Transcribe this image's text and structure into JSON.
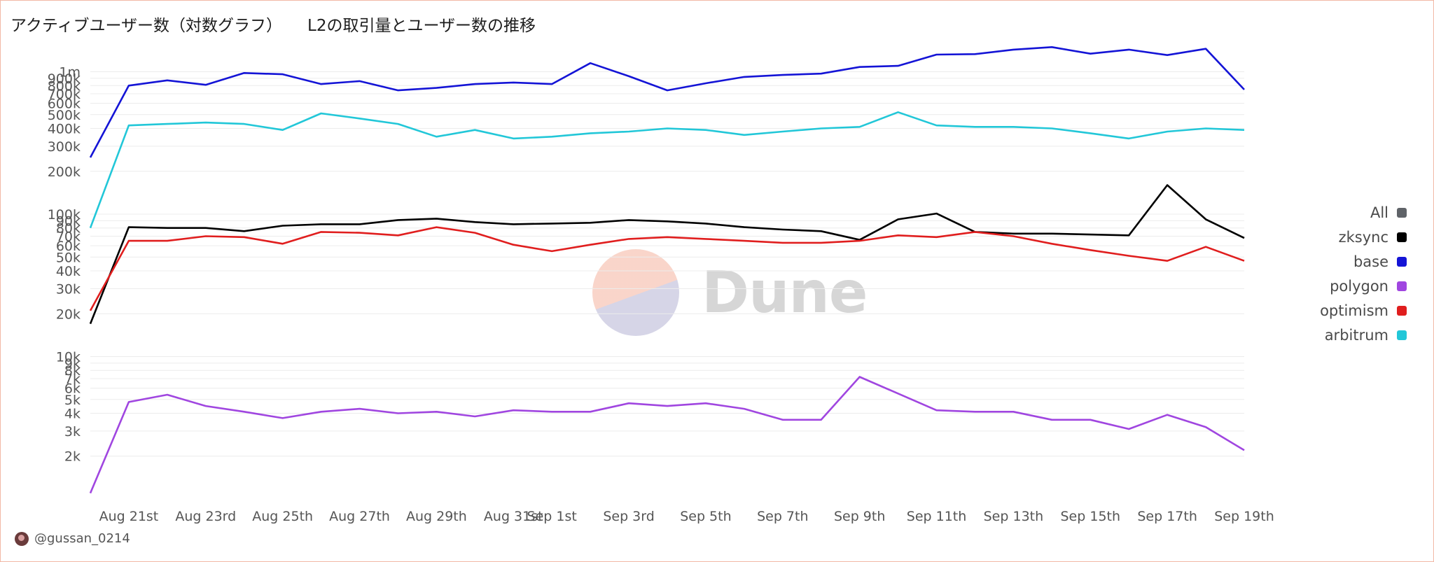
{
  "header": {
    "title": "アクティブユーザー数（対数グラフ）",
    "subtitle": "L2の取引量とユーザー数の推移"
  },
  "legend": [
    {
      "label": "All",
      "color": "#5f6368"
    },
    {
      "label": "zksync",
      "color": "#000000"
    },
    {
      "label": "base",
      "color": "#1414d6"
    },
    {
      "label": "polygon",
      "color": "#a046e0"
    },
    {
      "label": "optimism",
      "color": "#e01e1e"
    },
    {
      "label": "arbitrum",
      "color": "#22c7d8"
    }
  ],
  "watermark": {
    "text": "Dune"
  },
  "footer": {
    "author": "@gussan_0214"
  },
  "chart_data": {
    "type": "line",
    "x_start": "2023-08-20",
    "x": [
      "2023-08-20",
      "2023-08-21",
      "2023-08-22",
      "2023-08-23",
      "2023-08-24",
      "2023-08-25",
      "2023-08-26",
      "2023-08-27",
      "2023-08-28",
      "2023-08-29",
      "2023-08-30",
      "2023-08-31",
      "2023-09-01",
      "2023-09-02",
      "2023-09-03",
      "2023-09-04",
      "2023-09-05",
      "2023-09-06",
      "2023-09-07",
      "2023-09-08",
      "2023-09-09",
      "2023-09-10",
      "2023-09-11",
      "2023-09-12",
      "2023-09-13",
      "2023-09-14",
      "2023-09-15",
      "2023-09-16",
      "2023-09-17",
      "2023-09-18",
      "2023-09-19"
    ],
    "x_ticks": [
      "Aug 21st",
      "Aug 23rd",
      "Aug 25th",
      "Aug 27th",
      "Aug 29th",
      "Aug 31st",
      "Sep 1st",
      "Sep 3rd",
      "Sep 5th",
      "Sep 7th",
      "Sep 9th",
      "Sep 11th",
      "Sep 13th",
      "Sep 15th",
      "Sep 17th",
      "Sep 19th"
    ],
    "x_tick_dates": [
      "2023-08-21",
      "2023-08-23",
      "2023-08-25",
      "2023-08-27",
      "2023-08-29",
      "2023-08-31",
      "2023-09-01",
      "2023-09-03",
      "2023-09-05",
      "2023-09-07",
      "2023-09-09",
      "2023-09-11",
      "2023-09-13",
      "2023-09-15",
      "2023-09-17",
      "2023-09-19"
    ],
    "y_scale": "log",
    "y_ticks": [
      {
        "v": 2000,
        "l": "2k"
      },
      {
        "v": 3000,
        "l": "3k"
      },
      {
        "v": 4000,
        "l": "4k"
      },
      {
        "v": 5000,
        "l": "5k"
      },
      {
        "v": 6000,
        "l": "6k"
      },
      {
        "v": 7000,
        "l": "7k"
      },
      {
        "v": 8000,
        "l": "8k"
      },
      {
        "v": 9000,
        "l": "9k"
      },
      {
        "v": 10000,
        "l": "10k"
      },
      {
        "v": 20000,
        "l": "20k"
      },
      {
        "v": 30000,
        "l": "30k"
      },
      {
        "v": 40000,
        "l": "40k"
      },
      {
        "v": 50000,
        "l": "50k"
      },
      {
        "v": 60000,
        "l": "60k"
      },
      {
        "v": 70000,
        "l": "70k"
      },
      {
        "v": 80000,
        "l": "80k"
      },
      {
        "v": 90000,
        "l": "90k"
      },
      {
        "v": 100000,
        "l": "100k"
      },
      {
        "v": 200000,
        "l": "200k"
      },
      {
        "v": 300000,
        "l": "300k"
      },
      {
        "v": 400000,
        "l": "400k"
      },
      {
        "v": 500000,
        "l": "500k"
      },
      {
        "v": 600000,
        "l": "600k"
      },
      {
        "v": 700000,
        "l": "700k"
      },
      {
        "v": 800000,
        "l": "800k"
      },
      {
        "v": 900000,
        "l": "900k"
      },
      {
        "v": 1000000,
        "l": "1m"
      }
    ],
    "ylim": [
      1000,
      1600000
    ],
    "grid": true,
    "legend_position": "right",
    "series": [
      {
        "name": "base",
        "color": "#1414d6",
        "values": [
          250000,
          800000,
          870000,
          810000,
          980000,
          960000,
          820000,
          860000,
          740000,
          770000,
          820000,
          840000,
          820000,
          1150000,
          930000,
          740000,
          830000,
          920000,
          950000,
          970000,
          1080000,
          1100000,
          1320000,
          1330000,
          1430000,
          1490000,
          1340000,
          1430000,
          1310000,
          1450000,
          750000
        ]
      },
      {
        "name": "arbitrum",
        "color": "#22c7d8",
        "values": [
          80000,
          420000,
          430000,
          440000,
          430000,
          390000,
          510000,
          470000,
          430000,
          350000,
          390000,
          340000,
          350000,
          370000,
          380000,
          400000,
          390000,
          360000,
          380000,
          400000,
          410000,
          520000,
          420000,
          410000,
          410000,
          400000,
          370000,
          340000,
          380000,
          400000,
          390000
        ]
      },
      {
        "name": "zksync",
        "color": "#000000",
        "values": [
          17000,
          81000,
          80000,
          80000,
          76000,
          83000,
          85000,
          85000,
          91000,
          93000,
          88000,
          85000,
          86000,
          87000,
          91000,
          89000,
          86000,
          81000,
          78000,
          76000,
          66000,
          92000,
          101000,
          75000,
          73000,
          73000,
          72000,
          71000,
          160000,
          92000,
          68000
        ]
      },
      {
        "name": "optimism",
        "color": "#e01e1e",
        "values": [
          21000,
          65000,
          65000,
          70000,
          69000,
          62000,
          75000,
          74000,
          71000,
          81000,
          74000,
          61000,
          55000,
          61000,
          67000,
          69000,
          67000,
          65000,
          63000,
          63000,
          65000,
          71000,
          69000,
          75000,
          70000,
          62000,
          56000,
          51000,
          47000,
          59000,
          47000
        ]
      },
      {
        "name": "polygon",
        "color": "#a046e0",
        "values": [
          1100,
          4800,
          5400,
          4500,
          4100,
          3700,
          4100,
          4300,
          4000,
          4100,
          3800,
          4200,
          4100,
          4100,
          4700,
          4500,
          4700,
          4300,
          3600,
          3600,
          7200,
          5500,
          4200,
          4100,
          4100,
          3600,
          3600,
          3100,
          3900,
          3200,
          2200
        ]
      }
    ]
  }
}
